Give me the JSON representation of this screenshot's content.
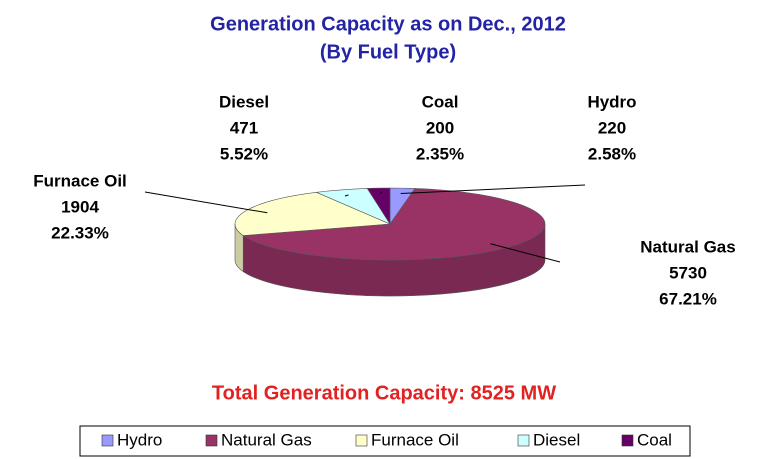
{
  "chart_data": {
    "type": "pie",
    "title": "Generation Capacity as on Dec., 2012",
    "subtitle": "(By Fuel Type)",
    "categories": [
      "Hydro",
      "Natural Gas",
      "Furnace Oil",
      "Diesel",
      "Coal"
    ],
    "values": [
      220,
      5730,
      1904,
      471,
      200
    ],
    "percent_labels": [
      "2.58%",
      "67.21%",
      "22.33%",
      "5.52%",
      "2.35%"
    ],
    "colors": [
      "#9999ff",
      "#993366",
      "#ffffcc",
      "#ccffff",
      "#660066"
    ],
    "total": "Total Generation Capacity: 8525 MW",
    "legend": "bottom"
  }
}
